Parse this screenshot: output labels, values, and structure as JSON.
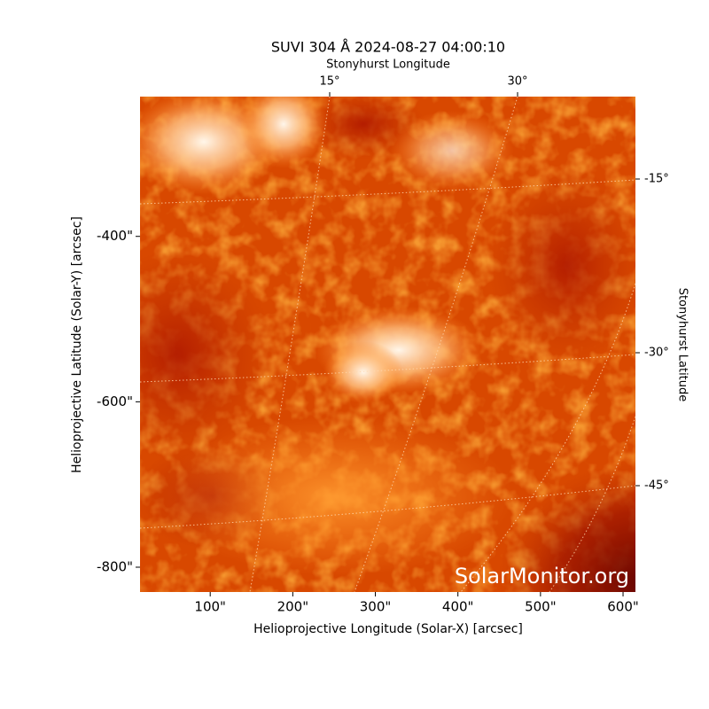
{
  "chart_data": {
    "type": "image",
    "title": "SUVI 304 Å 2024-08-27 04:00:10",
    "xlabel": "Helioprojective Longitude (Solar-X) [arcsec]",
    "ylabel": "Helioprojective Latitude (Solar-Y) [arcsec]",
    "x2label": "Stonyhurst Longitude",
    "y2label": "Stonyhurst Latitude",
    "watermark": "SolarMonitor.org",
    "xlim": [
      15,
      615
    ],
    "ylim": [
      -830,
      -231
    ],
    "xticks": [
      {
        "value": 100,
        "label": "100\""
      },
      {
        "value": 200,
        "label": "200\""
      },
      {
        "value": 300,
        "label": "300\""
      },
      {
        "value": 400,
        "label": "400\""
      },
      {
        "value": 500,
        "label": "500\""
      },
      {
        "value": 600,
        "label": "600\""
      }
    ],
    "yticks": [
      {
        "value": -400,
        "label": "-400\""
      },
      {
        "value": -600,
        "label": "-600\""
      },
      {
        "value": -800,
        "label": "-800\""
      }
    ],
    "x2ticks": [
      {
        "value": 15,
        "label": "15°"
      },
      {
        "value": 30,
        "label": "30°"
      }
    ],
    "y2ticks": [
      {
        "value": -15,
        "label": "-15°"
      },
      {
        "value": -30,
        "label": "-30°"
      },
      {
        "value": -45,
        "label": "-45°"
      }
    ]
  }
}
